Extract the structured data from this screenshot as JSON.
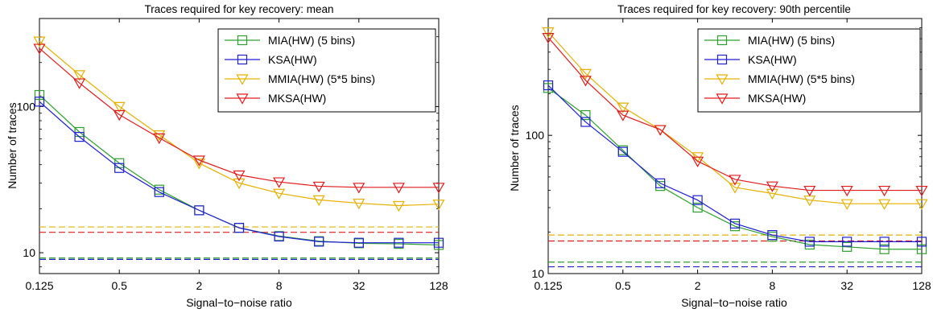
{
  "chart_data": [
    {
      "type": "line",
      "title": "Traces required for key recovery: mean",
      "xlabel": "Signal−to−noise ratio",
      "ylabel": "Number of traces",
      "xscale": "log2",
      "yscale": "log10",
      "x": [
        0.125,
        0.25,
        0.5,
        1,
        2,
        4,
        8,
        16,
        32,
        64,
        128
      ],
      "xticks": [
        0.125,
        0.5,
        2,
        8,
        32,
        128
      ],
      "xtick_labels": [
        "0.125",
        "0.5",
        "2",
        "8",
        "32",
        "128"
      ],
      "yticks": [
        10,
        100
      ],
      "ytick_labels": [
        "10",
        "100"
      ],
      "xlim": [
        0.125,
        128
      ],
      "ylim": [
        7.2,
        400
      ],
      "legend_position": "top-right",
      "series": [
        {
          "name": "MIA(HW) (5 bins)",
          "color": "#2ca02c",
          "marker": "square",
          "values": [
            120,
            67,
            41,
            27,
            19.5,
            14.8,
            13,
            12,
            11.6,
            11.5,
            11.3
          ],
          "threshold": 9.2
        },
        {
          "name": "KSA(HW)",
          "color": "#1f1fd6",
          "marker": "square",
          "values": [
            108,
            62,
            38,
            26,
            19.5,
            14.8,
            12.9,
            11.9,
            11.7,
            11.7,
            11.7
          ],
          "threshold": 9.0
        },
        {
          "name": "MMIA(HW) (5*5 bins)",
          "color": "#e6b000",
          "marker": "triangle-down",
          "values": [
            280,
            165,
            100,
            64,
            41,
            30,
            25.5,
            23,
            21.8,
            21,
            21.5
          ],
          "threshold": 15
        },
        {
          "name": "MKSA(HW)",
          "color": "#e31a1c",
          "marker": "triangle-down",
          "values": [
            250,
            145,
            88,
            61,
            43,
            34,
            30.5,
            28.5,
            28,
            28,
            28
          ],
          "threshold": 13.8
        }
      ]
    },
    {
      "type": "line",
      "title": "Traces required for key recovery: 90th percentile",
      "xlabel": "Signal−to−noise ratio",
      "ylabel": "Number of traces",
      "xscale": "log2",
      "yscale": "log10",
      "x": [
        0.125,
        0.25,
        0.5,
        1,
        2,
        4,
        8,
        16,
        32,
        64,
        128
      ],
      "xticks": [
        0.125,
        0.5,
        2,
        8,
        32,
        128
      ],
      "xtick_labels": [
        "0.125",
        "0.5",
        "2",
        "8",
        "32",
        "128"
      ],
      "yticks": [
        10,
        100
      ],
      "ytick_labels": [
        "10",
        "100"
      ],
      "xlim": [
        0.125,
        128
      ],
      "ylim": [
        10,
        700
      ],
      "legend_position": "top-right",
      "series": [
        {
          "name": "MIA(HW) (5 bins)",
          "color": "#2ca02c",
          "marker": "square",
          "values": [
            220,
            140,
            78,
            43,
            30,
            22,
            18.5,
            16.2,
            15.6,
            15,
            15
          ],
          "threshold": 12.1
        },
        {
          "name": "KSA(HW)",
          "color": "#1f1fd6",
          "marker": "square",
          "values": [
            230,
            125,
            76,
            45,
            34,
            23,
            19,
            17,
            17,
            17,
            17
          ],
          "threshold": 11.2
        },
        {
          "name": "MMIA(HW) (5*5 bins)",
          "color": "#e6b000",
          "marker": "triangle-down",
          "values": [
            560,
            280,
            160,
            110,
            70,
            42,
            38,
            34,
            32,
            32,
            32
          ],
          "threshold": 19
        },
        {
          "name": "MKSA(HW)",
          "color": "#e31a1c",
          "marker": "triangle-down",
          "values": [
            510,
            250,
            140,
            110,
            65,
            48,
            43,
            40,
            40,
            40,
            40
          ],
          "threshold": 17.2
        }
      ]
    }
  ]
}
